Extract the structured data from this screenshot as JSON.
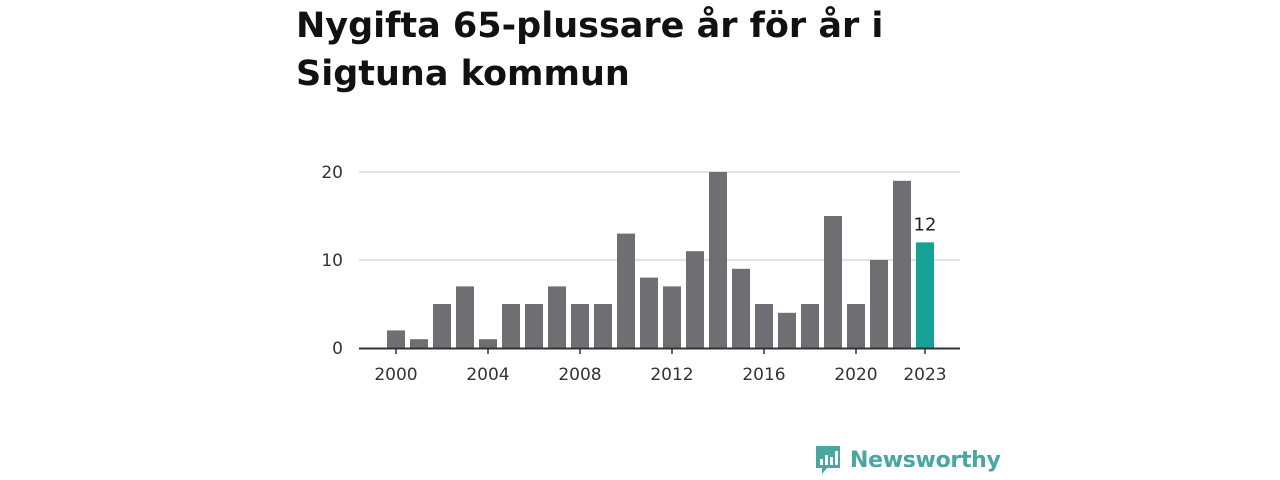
{
  "title": "Nygifta 65-plussare år för år i Sigtuna kommun",
  "brand": {
    "name": "Newsworthy"
  },
  "colors": {
    "bar": "#6f6e72",
    "highlight": "#16a196",
    "grid": "#d9d9d9",
    "axis": "#333333"
  },
  "chart_data": {
    "type": "bar",
    "categories": [
      "2000",
      "2001",
      "2002",
      "2003",
      "2004",
      "2005",
      "2006",
      "2007",
      "2008",
      "2009",
      "2010",
      "2011",
      "2012",
      "2013",
      "2014",
      "2015",
      "2016",
      "2017",
      "2018",
      "2019",
      "2020",
      "2021",
      "2022",
      "2023"
    ],
    "values": [
      2,
      1,
      5,
      7,
      1,
      5,
      5,
      7,
      5,
      5,
      13,
      8,
      7,
      11,
      20,
      9,
      5,
      4,
      5,
      15,
      5,
      10,
      19,
      12
    ],
    "highlight_category": "2023",
    "highlight_label": "12",
    "ylim": [
      0,
      20
    ],
    "yticks": [
      "0",
      "10",
      "20"
    ],
    "xticks": [
      "2000",
      "2004",
      "2008",
      "2012",
      "2016",
      "2020",
      "2023"
    ],
    "grid": true
  }
}
